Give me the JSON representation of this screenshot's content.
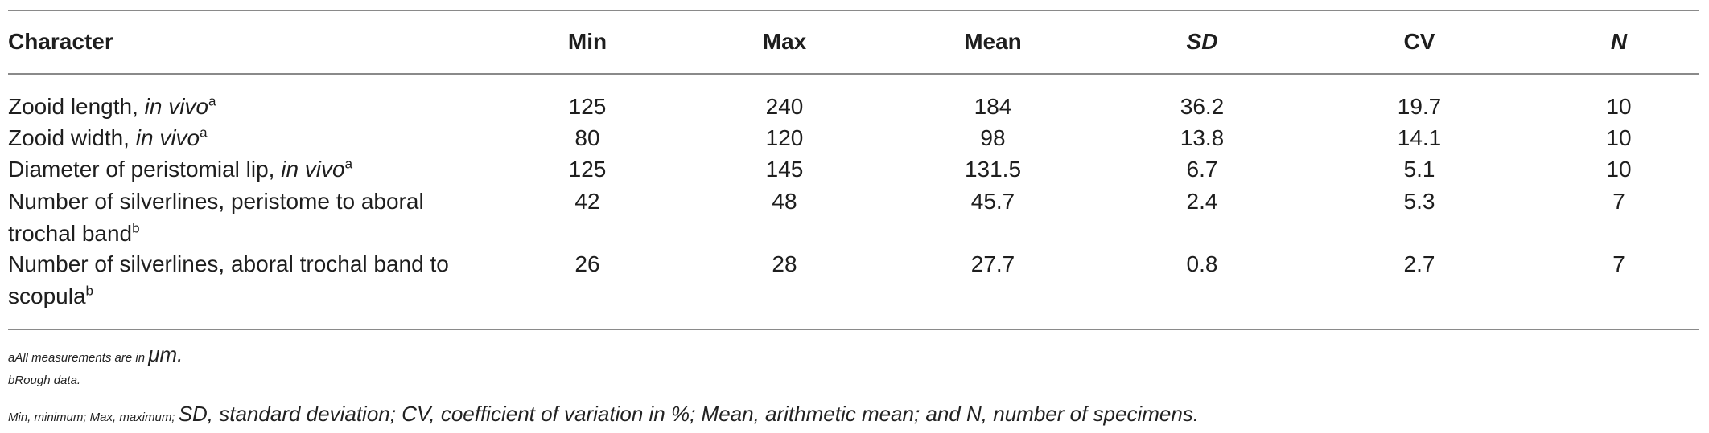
{
  "table": {
    "headers": {
      "character": "Character",
      "min": "Min",
      "max": "Max",
      "mean": "Mean",
      "sd": "SD",
      "cv": "CV",
      "n": "N"
    },
    "rows": [
      {
        "character_main": "Zooid length, ",
        "character_italic": "in vivo",
        "character_sup": "a",
        "min": "125",
        "max": "240",
        "mean": "184",
        "sd": "36.2",
        "cv": "19.7",
        "n": "10"
      },
      {
        "character_main": "Zooid width, ",
        "character_italic": "in vivo",
        "character_sup": "a",
        "min": "80",
        "max": "120",
        "mean": "98",
        "sd": "13.8",
        "cv": "14.1",
        "n": "10"
      },
      {
        "character_main": "Diameter of peristomial lip, ",
        "character_italic": "in vivo",
        "character_sup": "a",
        "min": "125",
        "max": "145",
        "mean": "131.5",
        "sd": "6.7",
        "cv": "5.1",
        "n": "10"
      },
      {
        "character_main": "Number of silverlines, peristome to aboral trochal band",
        "character_italic": "",
        "character_sup": "b",
        "min": "42",
        "max": "48",
        "mean": "45.7",
        "sd": "2.4",
        "cv": "5.3",
        "n": "7"
      },
      {
        "character_main": "Number of silverlines, aboral trochal band to scopula",
        "character_italic": "",
        "character_sup": "b",
        "min": "26",
        "max": "28",
        "mean": "27.7",
        "sd": "0.8",
        "cv": "2.7",
        "n": "7"
      }
    ]
  },
  "footnotes": {
    "a_small": "aAll measurements are in ",
    "a_big": "μm.",
    "b_small": "bRough data.",
    "c_small": "Min, minimum; Max, maximum; ",
    "c_big": "SD, standard deviation; CV, coefficient of variation in %; Mean, arithmetic mean; and N, number of specimens."
  }
}
